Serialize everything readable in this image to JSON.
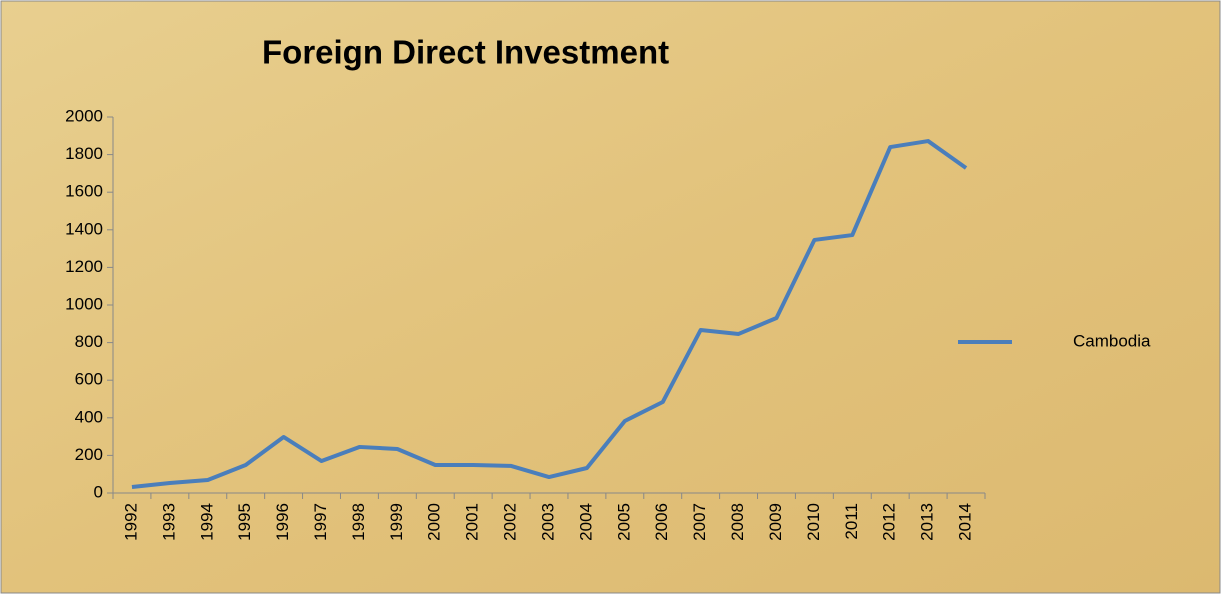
{
  "chart_data": {
    "type": "line",
    "title": "Foreign Direct Investment",
    "categories": [
      "1992",
      "1993",
      "1994",
      "1995",
      "1996",
      "1997",
      "1998",
      "1999",
      "2000",
      "2001",
      "2002",
      "2003",
      "2004",
      "2005",
      "2006",
      "2007",
      "2008",
      "2009",
      "2010",
      "2011",
      "2012",
      "2013",
      "2014"
    ],
    "series": [
      {
        "name": "Cambodia",
        "color": "#4a7ebb",
        "values": [
          32,
          53,
          69,
          149,
          298,
          170,
          245,
          234,
          149,
          149,
          144,
          85,
          133,
          383,
          484,
          867,
          846,
          931,
          1346,
          1372,
          1840,
          1872,
          1729
        ]
      }
    ],
    "ylim": [
      0,
      2000
    ],
    "yticks": [
      0,
      200,
      400,
      600,
      800,
      1000,
      1200,
      1400,
      1600,
      1800,
      2000
    ],
    "legend": "right"
  }
}
